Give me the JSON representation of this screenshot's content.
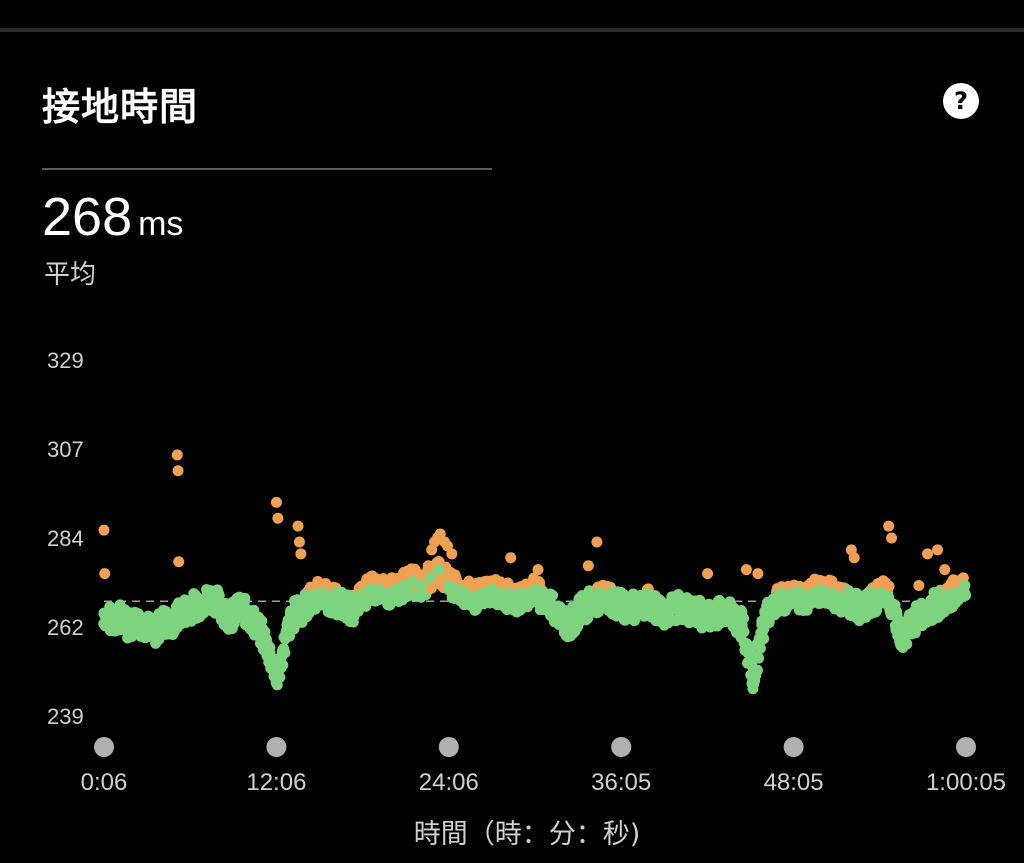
{
  "header": {
    "title": "接地時間",
    "help_icon": "question-icon",
    "help_glyph": "?"
  },
  "summary": {
    "value": "268",
    "unit": "ms",
    "label": "平均"
  },
  "chart_data": {
    "type": "scatter",
    "title": "接地時間",
    "xlabel": "時間（時：分：秒)",
    "ylabel": "",
    "yticks": [
      "329",
      "307",
      "284",
      "262",
      "239"
    ],
    "ylim": [
      239,
      329
    ],
    "xticks": [
      "0:06",
      "12:06",
      "24:06",
      "36:05",
      "48:05",
      "1:00:05"
    ],
    "xlim_minutes": [
      0.1,
      60.08
    ],
    "average_line": 268,
    "threshold_color_split": 271,
    "colors": {
      "green": "#7ed37e",
      "orange": "#f0a052",
      "average_line": "#a0a0a0",
      "tick_dot": "#b0b0b0"
    },
    "series": [
      {
        "x_minutes": [
          0.1,
          0.6,
          1.2,
          1.8,
          2.4,
          3.0,
          3.6,
          4.2,
          4.8,
          5.4,
          5.9,
          6.5,
          7.1,
          7.7,
          8.3,
          8.9,
          9.5,
          10.1,
          10.7,
          11.3,
          11.9,
          12.1,
          12.6,
          13.0,
          13.4,
          13.9,
          14.4,
          15.0,
          15.6,
          16.2,
          16.8,
          17.4,
          18.0,
          18.6,
          19.2,
          19.8,
          20.4,
          21.0,
          21.6,
          22.2,
          22.8,
          23.4,
          24.1,
          24.7,
          25.3,
          25.9,
          26.5,
          27.1,
          27.7,
          28.3,
          28.9,
          29.5,
          30.1,
          30.7,
          31.3,
          31.9,
          32.5,
          33.1,
          33.7,
          34.3,
          34.9,
          35.5,
          36.1,
          36.7,
          37.3,
          37.9,
          38.5,
          39.1,
          39.7,
          40.3,
          40.9,
          41.5,
          42.1,
          42.7,
          43.3,
          43.9,
          44.5,
          44.9,
          45.3,
          45.8,
          46.4,
          47.0,
          47.6,
          48.2,
          48.8,
          49.4,
          50.0,
          50.6,
          51.2,
          51.8,
          52.4,
          53.0,
          53.6,
          54.2,
          54.7,
          55.1,
          55.6,
          56.2,
          56.8,
          57.4,
          58.0,
          58.6,
          59.2,
          59.8,
          60.0
        ],
        "y_ms": [
          265,
          263,
          264,
          262,
          263,
          262,
          260,
          263,
          262,
          265,
          266,
          267,
          268,
          269,
          266,
          264,
          266,
          265,
          262,
          258,
          252,
          248,
          256,
          262,
          265,
          266,
          268,
          270,
          269,
          268,
          267,
          266,
          269,
          271,
          271,
          270,
          271,
          272,
          273,
          272,
          274,
          276,
          272,
          271,
          270,
          269,
          270,
          271,
          270,
          269,
          268,
          270,
          271,
          268,
          267,
          264,
          262,
          265,
          267,
          268,
          269,
          268,
          267,
          266,
          267,
          268,
          266,
          265,
          266,
          267,
          265,
          265,
          264,
          265,
          266,
          264,
          262,
          255,
          248,
          260,
          266,
          268,
          269,
          270,
          268,
          270,
          271,
          270,
          269,
          268,
          267,
          266,
          268,
          270,
          269,
          266,
          258,
          262,
          264,
          266,
          267,
          268,
          270,
          271,
          272
        ]
      },
      {
        "x_minutes": [
          0.1,
          0.15,
          5.2,
          5.25,
          5.3,
          12.1,
          12.2,
          13.6,
          13.7,
          13.8,
          22.9,
          23.1,
          23.3,
          23.5,
          23.8,
          24.0,
          24.3,
          28.4,
          30.3,
          33.8,
          34.4,
          42.1,
          44.8,
          45.6,
          52.1,
          52.3,
          54.7,
          54.9,
          56.8,
          57.4,
          58.1,
          58.6
        ],
        "y_ms": [
          286,
          275,
          305,
          301,
          278,
          293,
          289,
          287,
          283,
          280,
          281,
          283,
          284,
          285,
          283,
          282,
          280,
          279,
          276,
          277,
          283,
          275,
          276,
          275,
          281,
          279,
          287,
          284,
          272,
          280,
          281,
          276
        ]
      }
    ]
  }
}
